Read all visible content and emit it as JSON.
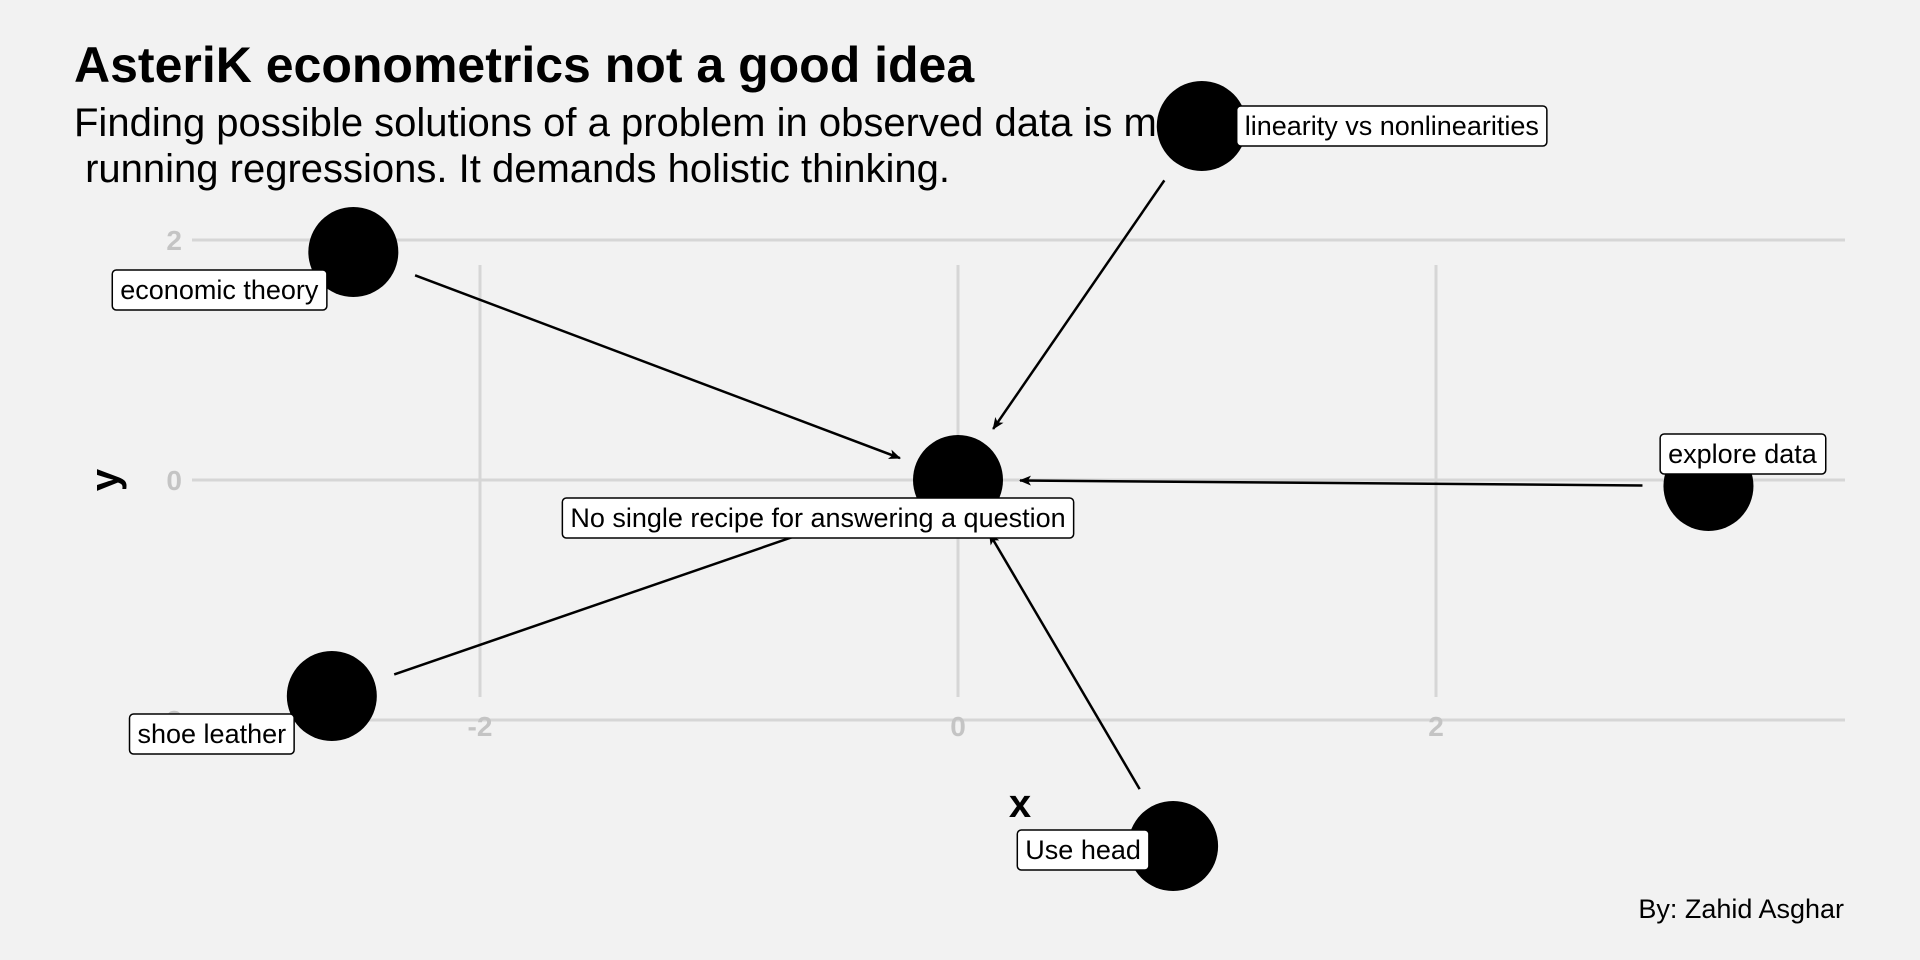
{
  "chart_data": {
    "type": "scatter",
    "title": "AsteriK econometrics not a good idea",
    "subtitle": "Finding possible solutions of a problem in observed data is more than simply\n running regressions. It demands holistic thinking.",
    "caption": "By: Zahid Asghar",
    "xlabel": "x",
    "ylabel": "y",
    "xlim": [
      -3.2,
      3.7
    ],
    "ylim": [
      -3.6,
      3.6
    ],
    "xticks": [
      -2,
      0,
      2
    ],
    "yticks": [
      -2,
      0,
      2
    ],
    "grid": true,
    "center": {
      "x": 0,
      "y": 0,
      "label": "No single recipe for answering a question"
    },
    "points": [
      {
        "x": -2.53,
        "y": 1.9,
        "label": "economic theory"
      },
      {
        "x": -2.62,
        "y": -1.8,
        "label": "shoe leather"
      },
      {
        "x": 1.02,
        "y": 2.95,
        "label": "linearity vs nonlinearities"
      },
      {
        "x": 3.14,
        "y": -0.05,
        "label": "explore data"
      },
      {
        "x": 0.9,
        "y": -3.05,
        "label": "Use head"
      }
    ],
    "point_color": "#000000",
    "arrow_color": "#000000",
    "grid_color": "#d6d6d6",
    "tick_color": "#c4c4c4"
  }
}
